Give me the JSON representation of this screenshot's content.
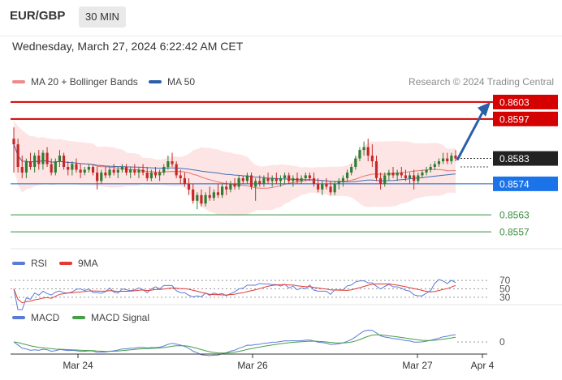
{
  "header": {
    "pair": "EUR/GBP",
    "timeframe": "30 MIN"
  },
  "datetime": "Wednesday, March 27, 2024 6:22:42 AM CET",
  "main_legend": {
    "bb_label": "MA 20 + Bollinger Bands",
    "ma50_label": "MA 50",
    "copyright": "Research © 2024 Trading Central"
  },
  "rsi_legend": {
    "rsi_label": "RSI",
    "ma_label": "9MA"
  },
  "macd_legend": {
    "macd_label": "MACD",
    "signal_label": "MACD Signal"
  },
  "colors": {
    "up": "#2e7d32",
    "down": "#c62828",
    "resistance": "#d50000",
    "support_blue": "#1565c0",
    "support_green": "#388e3c",
    "band_fill": "#fde2e2",
    "ma20": "#e57373",
    "ma50": "#3f6fb5",
    "price": "#222222",
    "arrow": "#2b5fa8",
    "rsi": "#5c7bd9",
    "rsi_ma": "#e53935",
    "macd": "#5c7bd9",
    "macd_signal": "#43a047"
  },
  "chart_data": [
    {
      "type": "candlestick",
      "title": "EUR/GBP 30 MIN",
      "x_ticks": [
        "Mar 24",
        "Mar 26",
        "Mar 27",
        "Apr 4"
      ],
      "ylim": [
        0.8553,
        0.8607
      ],
      "levels": [
        {
          "value": 0.8603,
          "label": "0.8603",
          "kind": "resistance"
        },
        {
          "value": 0.8597,
          "label": "0.8597",
          "kind": "resistance"
        },
        {
          "value": 0.8583,
          "label": "0.8583",
          "kind": "last_price"
        },
        {
          "value": 0.8574,
          "label": "0.8574",
          "kind": "pivot"
        },
        {
          "value": 0.8563,
          "label": "0.8563",
          "kind": "support"
        },
        {
          "value": 0.8557,
          "label": "0.8557",
          "kind": "support"
        }
      ],
      "candles": [
        [
          0.859,
          0.8594,
          0.8578,
          0.8588
        ],
        [
          0.8588,
          0.859,
          0.8578,
          0.858
        ],
        [
          0.858,
          0.8584,
          0.8576,
          0.8578
        ],
        [
          0.8578,
          0.8583,
          0.8576,
          0.8582
        ],
        [
          0.8582,
          0.8585,
          0.8579,
          0.858
        ],
        [
          0.858,
          0.8585,
          0.8578,
          0.8584
        ],
        [
          0.8584,
          0.8586,
          0.8579,
          0.8581
        ],
        [
          0.8581,
          0.8586,
          0.8579,
          0.8585
        ],
        [
          0.8585,
          0.8587,
          0.858,
          0.8581
        ],
        [
          0.8581,
          0.8583,
          0.8577,
          0.8578
        ],
        [
          0.8578,
          0.8583,
          0.8577,
          0.8582
        ],
        [
          0.8582,
          0.8586,
          0.858,
          0.8584
        ],
        [
          0.8584,
          0.8585,
          0.8579,
          0.858
        ],
        [
          0.858,
          0.8582,
          0.8577,
          0.8579
        ],
        [
          0.8579,
          0.8582,
          0.8577,
          0.8581
        ],
        [
          0.8581,
          0.8583,
          0.8578,
          0.8579
        ],
        [
          0.8579,
          0.8581,
          0.8576,
          0.8578
        ],
        [
          0.8578,
          0.858,
          0.8577,
          0.8579
        ],
        [
          0.8579,
          0.8581,
          0.8578,
          0.858
        ],
        [
          0.858,
          0.8581,
          0.8577,
          0.8578
        ],
        [
          0.8578,
          0.858,
          0.8572,
          0.8575
        ],
        [
          0.8575,
          0.8579,
          0.8574,
          0.8578
        ],
        [
          0.8578,
          0.858,
          0.8576,
          0.8577
        ],
        [
          0.8577,
          0.858,
          0.8576,
          0.8579
        ],
        [
          0.8579,
          0.8581,
          0.8577,
          0.8578
        ],
        [
          0.8578,
          0.858,
          0.8576,
          0.8579
        ],
        [
          0.8579,
          0.8581,
          0.8578,
          0.858
        ],
        [
          0.858,
          0.8581,
          0.8577,
          0.8578
        ],
        [
          0.8578,
          0.858,
          0.8576,
          0.8579
        ],
        [
          0.8579,
          0.8581,
          0.8577,
          0.8578
        ],
        [
          0.8578,
          0.858,
          0.8576,
          0.8579
        ],
        [
          0.8579,
          0.8581,
          0.8577,
          0.8578
        ],
        [
          0.8578,
          0.858,
          0.8575,
          0.8576
        ],
        [
          0.8576,
          0.8579,
          0.8575,
          0.8578
        ],
        [
          0.8578,
          0.858,
          0.8576,
          0.8577
        ],
        [
          0.8577,
          0.8579,
          0.8575,
          0.8578
        ],
        [
          0.8578,
          0.8581,
          0.8577,
          0.858
        ],
        [
          0.858,
          0.8584,
          0.8579,
          0.8582
        ],
        [
          0.8582,
          0.8585,
          0.858,
          0.8581
        ],
        [
          0.8581,
          0.8582,
          0.8576,
          0.8577
        ],
        [
          0.8577,
          0.8579,
          0.8574,
          0.8576
        ],
        [
          0.8576,
          0.8578,
          0.8573,
          0.8574
        ],
        [
          0.8574,
          0.8576,
          0.857,
          0.8572
        ],
        [
          0.8572,
          0.8574,
          0.8567,
          0.8568
        ],
        [
          0.8568,
          0.8571,
          0.8565,
          0.857
        ],
        [
          0.857,
          0.8572,
          0.8566,
          0.8567
        ],
        [
          0.8567,
          0.8571,
          0.8566,
          0.857
        ],
        [
          0.857,
          0.8573,
          0.8568,
          0.8569
        ],
        [
          0.8569,
          0.8572,
          0.8568,
          0.8571
        ],
        [
          0.8571,
          0.8574,
          0.8569,
          0.857
        ],
        [
          0.857,
          0.8574,
          0.8569,
          0.8573
        ],
        [
          0.8573,
          0.8575,
          0.857,
          0.8572
        ],
        [
          0.8572,
          0.8575,
          0.8571,
          0.8574
        ],
        [
          0.8574,
          0.8576,
          0.8572,
          0.8573
        ],
        [
          0.8573,
          0.8577,
          0.8572,
          0.8576
        ],
        [
          0.8576,
          0.8577,
          0.8574,
          0.8575
        ],
        [
          0.8575,
          0.8578,
          0.8574,
          0.8577
        ],
        [
          0.8577,
          0.8578,
          0.8572,
          0.8573
        ],
        [
          0.8573,
          0.8576,
          0.8568,
          0.8575
        ],
        [
          0.8575,
          0.8577,
          0.8573,
          0.8574
        ],
        [
          0.8574,
          0.8577,
          0.8573,
          0.8576
        ],
        [
          0.8576,
          0.8578,
          0.8574,
          0.8575
        ],
        [
          0.8575,
          0.8577,
          0.8573,
          0.8576
        ],
        [
          0.8576,
          0.8578,
          0.8574,
          0.8575
        ],
        [
          0.8575,
          0.8577,
          0.8573,
          0.8576
        ],
        [
          0.8576,
          0.8578,
          0.8574,
          0.8577
        ],
        [
          0.8577,
          0.8578,
          0.8574,
          0.8575
        ],
        [
          0.8575,
          0.8577,
          0.8573,
          0.8576
        ],
        [
          0.8576,
          0.8578,
          0.8574,
          0.8575
        ],
        [
          0.8575,
          0.8577,
          0.8574,
          0.8576
        ],
        [
          0.8576,
          0.8578,
          0.8575,
          0.8577
        ],
        [
          0.8577,
          0.8578,
          0.8575,
          0.8576
        ],
        [
          0.8576,
          0.8578,
          0.8573,
          0.8574
        ],
        [
          0.8574,
          0.8576,
          0.8571,
          0.8572
        ],
        [
          0.8572,
          0.8575,
          0.857,
          0.8574
        ],
        [
          0.8574,
          0.8576,
          0.8572,
          0.8573
        ],
        [
          0.8573,
          0.8575,
          0.857,
          0.8571
        ],
        [
          0.8571,
          0.8575,
          0.857,
          0.8574
        ],
        [
          0.8574,
          0.8576,
          0.8572,
          0.8575
        ],
        [
          0.8575,
          0.8577,
          0.8573,
          0.8576
        ],
        [
          0.8576,
          0.8579,
          0.8575,
          0.8578
        ],
        [
          0.8578,
          0.8581,
          0.8577,
          0.858
        ],
        [
          0.858,
          0.8584,
          0.8579,
          0.8583
        ],
        [
          0.8583,
          0.8587,
          0.8582,
          0.8586
        ],
        [
          0.8586,
          0.8589,
          0.8584,
          0.8587
        ],
        [
          0.8587,
          0.859,
          0.8582,
          0.8584
        ],
        [
          0.8584,
          0.8588,
          0.858,
          0.8582
        ],
        [
          0.8582,
          0.8584,
          0.8575,
          0.8576
        ],
        [
          0.8576,
          0.8578,
          0.8572,
          0.8574
        ],
        [
          0.8574,
          0.8578,
          0.8573,
          0.8577
        ],
        [
          0.8577,
          0.8579,
          0.8575,
          0.8578
        ],
        [
          0.8578,
          0.858,
          0.8576,
          0.8577
        ],
        [
          0.8577,
          0.8579,
          0.8575,
          0.8578
        ],
        [
          0.8578,
          0.858,
          0.8576,
          0.8577
        ],
        [
          0.8577,
          0.8579,
          0.8575,
          0.8576
        ],
        [
          0.8576,
          0.8578,
          0.8574,
          0.8577
        ],
        [
          0.8577,
          0.8579,
          0.8572,
          0.8575
        ],
        [
          0.8575,
          0.8578,
          0.8574,
          0.8577
        ],
        [
          0.8577,
          0.8579,
          0.8576,
          0.8578
        ],
        [
          0.8578,
          0.858,
          0.8577,
          0.8579
        ],
        [
          0.8579,
          0.8581,
          0.8578,
          0.858
        ],
        [
          0.858,
          0.8582,
          0.8579,
          0.8581
        ],
        [
          0.8581,
          0.8583,
          0.858,
          0.8582
        ],
        [
          0.8582,
          0.8585,
          0.8581,
          0.8583
        ],
        [
          0.8583,
          0.8585,
          0.8581,
          0.8582
        ],
        [
          0.8582,
          0.8585,
          0.8581,
          0.8584
        ],
        [
          0.8584,
          0.8586,
          0.8582,
          0.8583
        ]
      ]
    },
    {
      "type": "line",
      "title": "RSI",
      "y_ticks": [
        70,
        50,
        30
      ],
      "ylim": [
        20,
        80
      ]
    },
    {
      "type": "line",
      "title": "MACD",
      "y_ticks": [
        0
      ]
    }
  ]
}
